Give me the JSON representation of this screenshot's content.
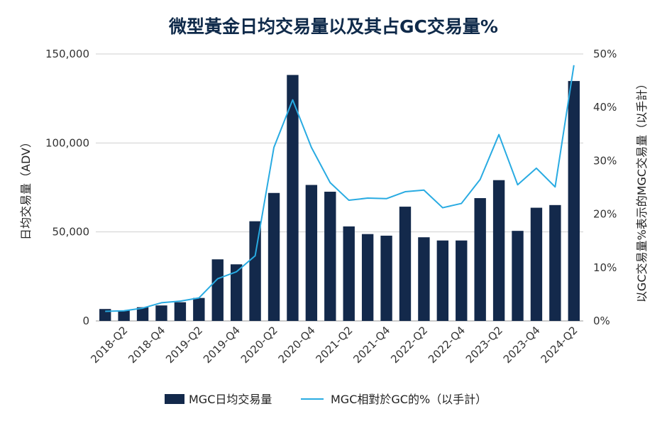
{
  "chart_data": {
    "type": "bar",
    "title": "微型黃金日均交易量以及其占GC交易量%",
    "ylabel": "日均交易量（ADV）",
    "y2label": "以GC交易量%表示的MGC交易量（以手計）",
    "ylim": [
      0,
      150000
    ],
    "y2lim": [
      0,
      50
    ],
    "yticks": [
      "0",
      "50,000",
      "100,000",
      "150,000"
    ],
    "y2ticks": [
      "0%",
      "10%",
      "20%",
      "30%",
      "40%",
      "50%"
    ],
    "grid": true,
    "legend_position": "bottom",
    "categories": [
      "2018-Q1",
      "2018-Q2",
      "2018-Q3",
      "2018-Q4",
      "2019-Q1",
      "2019-Q2",
      "2019-Q3",
      "2019-Q4",
      "2020-Q1",
      "2020-Q2",
      "2020-Q3",
      "2020-Q4",
      "2021-Q1",
      "2021-Q2",
      "2021-Q3",
      "2021-Q4",
      "2022-Q1",
      "2022-Q2",
      "2022-Q3",
      "2022-Q4",
      "2023-Q1",
      "2023-Q2",
      "2023-Q3",
      "2023-Q4",
      "2024-Q1",
      "2024-Q2"
    ],
    "visible_tick_labels": [
      "2018-Q2",
      "2018-Q4",
      "2019-Q2",
      "2019-Q4",
      "2020-Q2",
      "2020-Q4",
      "2021-Q2",
      "2021-Q4",
      "2022-Q2",
      "2022-Q4",
      "2023-Q2",
      "2023-Q4",
      "2024-Q2"
    ],
    "series": [
      {
        "name": "MGC日均交易量",
        "type": "bar",
        "axis": "left",
        "color": "#13294b",
        "values": [
          6700,
          5800,
          7700,
          8700,
          10500,
          12900,
          34600,
          31800,
          56000,
          71900,
          138200,
          76400,
          72600,
          53100,
          48800,
          47900,
          64200,
          47000,
          45200,
          45200,
          69000,
          79100,
          50600,
          63600,
          65100,
          134800
        ]
      },
      {
        "name": "MGC相對於GC的%（以手計）",
        "type": "line",
        "axis": "right",
        "color": "#29abe2",
        "values": [
          1.8,
          1.9,
          2.4,
          3.4,
          3.7,
          4.3,
          7.9,
          9.2,
          12.2,
          32.5,
          41.4,
          32.5,
          25.9,
          22.6,
          23.0,
          22.9,
          24.2,
          24.5,
          21.2,
          22.0,
          26.5,
          34.9,
          25.5,
          28.6,
          25.1,
          47.9
        ]
      }
    ]
  }
}
